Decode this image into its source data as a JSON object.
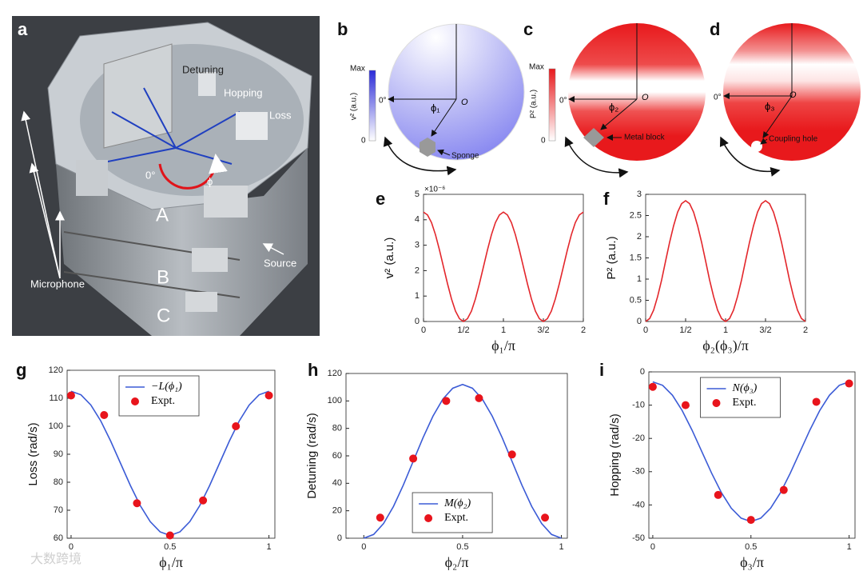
{
  "photo": {
    "label": "a",
    "detuning": "Detuning",
    "hopping": "Hopping",
    "loss": "Loss",
    "zero_angle": "0°",
    "angle": "ϕ",
    "layer_a": "A",
    "layer_b": "B",
    "layer_c": "C",
    "source": "Source",
    "microphone": "Microphone"
  },
  "diagrams": [
    {
      "label": "b",
      "colorbar_max": "Max",
      "colorbar_min": "0",
      "colorbar_label": "v² (a.u.)",
      "zero_angle": "0°",
      "angle": "ϕ₁",
      "origin": "O",
      "object": "Sponge"
    },
    {
      "label": "c",
      "colorbar_max": "Max",
      "colorbar_min": "0",
      "colorbar_label": "P² (a.u.)",
      "zero_angle": "0°",
      "angle": "ϕ₂",
      "origin": "O",
      "object": "Metal block"
    },
    {
      "label": "d",
      "zero_angle": "0°",
      "angle": "ϕ₃",
      "origin": "O",
      "object": "Coupling hole"
    }
  ],
  "chart_data": [
    {
      "type": "line",
      "label": "e",
      "ylabel": "v² (a.u.)",
      "xlabel": "ϕ₁/π",
      "y_multiplier_label": "×10⁻⁶",
      "xlim": [
        0,
        2
      ],
      "ylim": [
        0,
        5
      ],
      "xticks": [
        0,
        {
          "value": 0.5,
          "label": "1/2"
        },
        1,
        {
          "value": 1.5,
          "label": "3/2"
        },
        2
      ],
      "yticks": [
        0,
        1,
        2,
        3,
        4,
        5
      ],
      "grid": false,
      "series": [
        {
          "color": "#e3262b",
          "x": [
            0,
            0.05,
            0.1,
            0.15,
            0.2,
            0.25,
            0.3,
            0.35,
            0.4,
            0.45,
            0.5,
            0.55,
            0.6,
            0.65,
            0.7,
            0.75,
            0.8,
            0.85,
            0.9,
            0.95,
            1,
            1.05,
            1.1,
            1.15,
            1.2,
            1.25,
            1.3,
            1.35,
            1.4,
            1.45,
            1.5,
            1.55,
            1.6,
            1.65,
            1.7,
            1.75,
            1.8,
            1.85,
            1.9,
            1.95,
            2
          ],
          "values": [
            4.3,
            4.19,
            3.89,
            3.41,
            2.81,
            2.15,
            1.49,
            0.89,
            0.41,
            0.11,
            0,
            0.11,
            0.41,
            0.89,
            1.49,
            2.15,
            2.81,
            3.41,
            3.89,
            4.19,
            4.3,
            4.19,
            3.89,
            3.41,
            2.81,
            2.15,
            1.49,
            0.89,
            0.41,
            0.11,
            0,
            0.11,
            0.41,
            0.89,
            1.49,
            2.15,
            2.81,
            3.41,
            3.89,
            4.19,
            4.3
          ]
        }
      ]
    },
    {
      "type": "line",
      "label": "f",
      "ylabel": "P² (a.u.)",
      "xlabel": "ϕ₂(ϕ₃)/π",
      "xlim": [
        0,
        2
      ],
      "ylim": [
        0,
        3
      ],
      "xticks": [
        0,
        {
          "value": 0.5,
          "label": "1/2"
        },
        1,
        {
          "value": 1.5,
          "label": "3/2"
        },
        2
      ],
      "yticks": [
        0,
        0.5,
        1,
        1.5,
        2,
        2.5,
        3
      ],
      "grid": false,
      "series": [
        {
          "color": "#e3262b",
          "x": [
            0,
            0.05,
            0.1,
            0.15,
            0.2,
            0.25,
            0.3,
            0.35,
            0.4,
            0.45,
            0.5,
            0.55,
            0.6,
            0.65,
            0.7,
            0.75,
            0.8,
            0.85,
            0.9,
            0.95,
            1,
            1.05,
            1.1,
            1.15,
            1.2,
            1.25,
            1.3,
            1.35,
            1.4,
            1.45,
            1.5,
            1.55,
            1.6,
            1.65,
            1.7,
            1.75,
            1.8,
            1.85,
            1.9,
            1.95,
            2
          ],
          "values": [
            0,
            0.07,
            0.27,
            0.59,
            0.98,
            1.43,
            1.87,
            2.26,
            2.58,
            2.78,
            2.85,
            2.78,
            2.58,
            2.26,
            1.87,
            1.43,
            0.98,
            0.59,
            0.27,
            0.07,
            0,
            0.07,
            0.27,
            0.59,
            0.98,
            1.43,
            1.87,
            2.26,
            2.58,
            2.78,
            2.85,
            2.78,
            2.58,
            2.26,
            1.87,
            1.43,
            0.98,
            0.59,
            0.27,
            0.07,
            0
          ]
        }
      ]
    },
    {
      "type": "line",
      "label": "g",
      "ylabel": "Loss (rad/s)",
      "xlabel": "ϕ₁/π",
      "legend": "upper-center",
      "xlim": [
        -0.02,
        1.03
      ],
      "ylim": [
        60,
        120
      ],
      "xticks": [
        0,
        0.5,
        1
      ],
      "yticks": [
        60,
        70,
        80,
        90,
        100,
        110,
        120
      ],
      "grid": false,
      "series": [
        {
          "name": "−L(ϕ₁)",
          "type": "line",
          "color": "#3b5bd6",
          "x": [
            0,
            0.05,
            0.1,
            0.15,
            0.2,
            0.25,
            0.3,
            0.35,
            0.4,
            0.45,
            0.5,
            0.55,
            0.6,
            0.65,
            0.7,
            0.75,
            0.8,
            0.85,
            0.9,
            0.95,
            1
          ],
          "values": [
            112.5,
            111.24,
            107.58,
            101.89,
            94.71,
            86.75,
            78.79,
            71.61,
            65.92,
            62.26,
            61,
            62.26,
            65.92,
            71.61,
            78.79,
            86.75,
            94.71,
            101.89,
            107.58,
            111.24,
            112.5
          ]
        },
        {
          "name": "Expt.",
          "type": "scatter",
          "color": "#e8141c",
          "x": [
            0,
            0.167,
            0.333,
            0.5,
            0.667,
            0.833,
            1
          ],
          "values": [
            111,
            104,
            72.5,
            61,
            73.5,
            100,
            111
          ]
        }
      ]
    },
    {
      "type": "line",
      "label": "h",
      "ylabel": "Detuning (rad/s)",
      "xlabel": "ϕ₂/π",
      "legend": "lower-center",
      "xlim": [
        -0.09,
        1.03
      ],
      "ylim": [
        0,
        120
      ],
      "xticks": [
        0,
        0.5,
        1
      ],
      "yticks": [
        0,
        20,
        40,
        60,
        80,
        100,
        120
      ],
      "grid": false,
      "series": [
        {
          "name": "M(ϕ₂)",
          "type": "line",
          "color": "#3b5bd6",
          "x": [
            0,
            0.05,
            0.1,
            0.15,
            0.2,
            0.25,
            0.3,
            0.35,
            0.4,
            0.45,
            0.5,
            0.55,
            0.6,
            0.65,
            0.7,
            0.75,
            0.8,
            0.85,
            0.9,
            0.95,
            1
          ],
          "values": [
            0,
            2.74,
            10.7,
            23.09,
            38.7,
            56,
            73.3,
            88.91,
            101.3,
            109.26,
            112,
            109.26,
            101.3,
            88.91,
            73.3,
            56,
            38.7,
            23.09,
            10.7,
            2.74,
            0
          ]
        },
        {
          "name": "Expt.",
          "type": "scatter",
          "color": "#e8141c",
          "x": [
            0.083,
            0.25,
            0.417,
            0.583,
            0.75,
            0.917
          ],
          "values": [
            15,
            58,
            100,
            102,
            61,
            15
          ]
        }
      ]
    },
    {
      "type": "line",
      "label": "i",
      "ylabel": "Hopping (rad/s)",
      "xlabel": "ϕ₃/π",
      "legend": "upper-center",
      "xlim": [
        -0.02,
        1.03
      ],
      "ylim": [
        -50,
        0
      ],
      "xticks": [
        0,
        0.5,
        1
      ],
      "yticks": [
        -50,
        -40,
        -30,
        -20,
        -10,
        0
      ],
      "grid": false,
      "series": [
        {
          "name": "N(ϕ₃)",
          "type": "line",
          "color": "#3b5bd6",
          "x": [
            0,
            0.05,
            0.1,
            0.15,
            0.2,
            0.25,
            0.3,
            0.35,
            0.4,
            0.45,
            0.5,
            0.55,
            0.6,
            0.65,
            0.7,
            0.75,
            0.8,
            0.85,
            0.9,
            0.95,
            1
          ],
          "values": [
            -3,
            -4.03,
            -7.01,
            -11.65,
            -17.51,
            -24,
            -30.49,
            -36.35,
            -40.99,
            -43.97,
            -45,
            -43.97,
            -40.99,
            -36.35,
            -30.49,
            -24,
            -17.51,
            -11.65,
            -7.01,
            -4.03,
            -3
          ]
        },
        {
          "name": "Expt.",
          "type": "scatter",
          "color": "#e8141c",
          "x": [
            0,
            0.167,
            0.333,
            0.5,
            0.667,
            0.833,
            1
          ],
          "values": [
            -4.5,
            -10,
            -37,
            -44.5,
            -35.5,
            -9,
            -3.5
          ]
        }
      ]
    }
  ],
  "watermark": "大数跨境"
}
